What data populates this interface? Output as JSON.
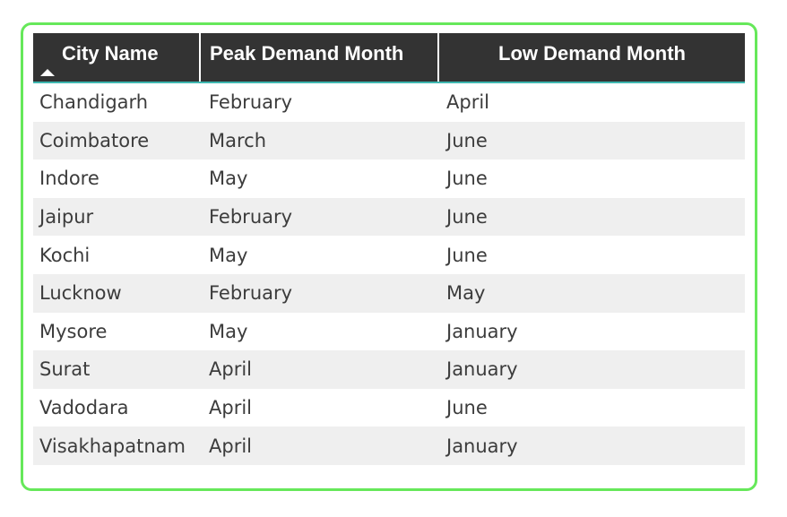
{
  "table": {
    "columns": [
      "City Name",
      "Peak Demand Month",
      "Low Demand Month"
    ],
    "sort": {
      "column": "City Name",
      "direction": "ascending"
    },
    "rows": [
      [
        "Chandigarh",
        "February",
        "April"
      ],
      [
        "Coimbatore",
        "March",
        "June"
      ],
      [
        "Indore",
        "May",
        "June"
      ],
      [
        "Jaipur",
        "February",
        "June"
      ],
      [
        "Kochi",
        "May",
        "June"
      ],
      [
        "Lucknow",
        "February",
        "May"
      ],
      [
        "Mysore",
        "May",
        "January"
      ],
      [
        "Surat",
        "April",
        "January"
      ],
      [
        "Vadodara",
        "April",
        "June"
      ],
      [
        "Visakhapatnam",
        "April",
        "January"
      ]
    ]
  },
  "colors": {
    "frame_border": "#66e85a",
    "header_bg": "#333333",
    "header_accent": "#3fb7b0",
    "row_alt_bg": "#efefef"
  },
  "icons": {
    "sort": "sort-ascending-icon"
  }
}
